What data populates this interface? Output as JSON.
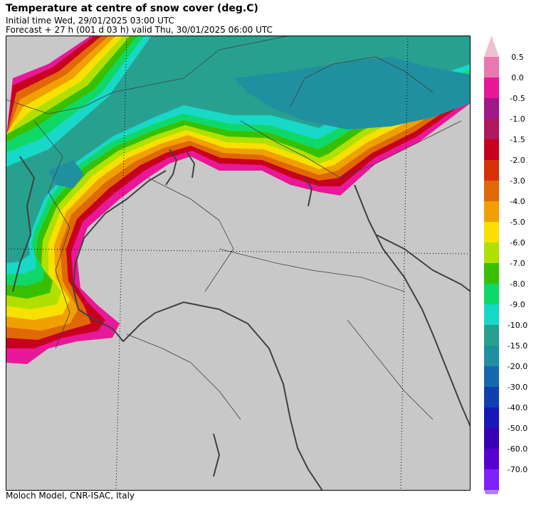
{
  "header": {
    "title": "Temperature at centre of snow cover (deg.C)",
    "initial_time": "Initial time  Wed, 29/01/2025  03:00 UTC",
    "forecast": "Forecast  +  27 h  (001 d 03 h)  valid Thu, 30/01/2025 06:00 UTC"
  },
  "footer": "Moloch Model, CNR-ISAC, Italy",
  "legend": {
    "top_arrow_color": "#f0c0d0",
    "bottom_arrow_color": "#b080f0",
    "items": [
      {
        "label": "0.5",
        "color": "#e878b0"
      },
      {
        "label": "0.0",
        "color": "#e81898"
      },
      {
        "label": "-0.5",
        "color": "#a01888"
      },
      {
        "label": "-1.0",
        "color": "#b01860"
      },
      {
        "label": "-1.5",
        "color": "#c80020"
      },
      {
        "label": "-2.0",
        "color": "#d83008"
      },
      {
        "label": "-3.0",
        "color": "#e06808"
      },
      {
        "label": "-4.0",
        "color": "#f0a000"
      },
      {
        "label": "-5.0",
        "color": "#f8e000"
      },
      {
        "label": "-6.0",
        "color": "#b0e000"
      },
      {
        "label": "-7.0",
        "color": "#38c000"
      },
      {
        "label": "-8.0",
        "color": "#10d868"
      },
      {
        "label": "-9.0",
        "color": "#18d8c8"
      },
      {
        "label": "-10.0",
        "color": "#28a090"
      },
      {
        "label": "-15.0",
        "color": "#2090a0"
      },
      {
        "label": "-20.0",
        "color": "#1868b0"
      },
      {
        "label": "-30.0",
        "color": "#1040b0"
      },
      {
        "label": "-40.0",
        "color": "#1818b8"
      },
      {
        "label": "-50.0",
        "color": "#3800b0"
      },
      {
        "label": "-60.0",
        "color": "#5800d0"
      },
      {
        "label": "-70.0",
        "color": "#8020f8"
      }
    ]
  },
  "map": {
    "background_color": "#c8c8c8",
    "coastline_color": "#404040",
    "graticule": "dotted"
  }
}
